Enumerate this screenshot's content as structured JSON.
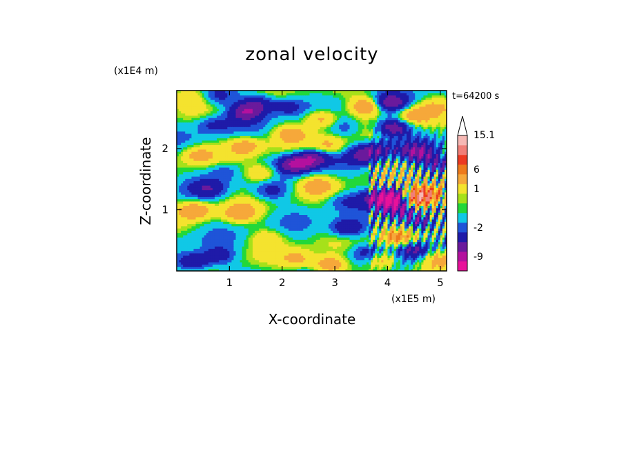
{
  "chart_data": {
    "type": "heatmap",
    "title": "zonal velocity",
    "xlabel": "X-coordinate",
    "ylabel": "Z-coordinate",
    "x_unit": "(x1E5 m)",
    "y_unit": "(x1E4 m)",
    "time_label": "t=64200 s",
    "xlim": [
      0,
      5.12
    ],
    "ylim": [
      0,
      2.95
    ],
    "x_ticks": [
      {
        "value": 1,
        "label": "1"
      },
      {
        "value": 2,
        "label": "2"
      },
      {
        "value": 3,
        "label": "3"
      },
      {
        "value": 4,
        "label": "4"
      },
      {
        "value": 5,
        "label": "5"
      }
    ],
    "y_ticks": [
      {
        "value": 1,
        "label": "1"
      },
      {
        "value": 2,
        "label": "2"
      }
    ],
    "grid": false,
    "colorbar": {
      "max_label": "15.1",
      "levels": [
        {
          "color": "#e8129a",
          "label": ""
        },
        {
          "color": "#b4119e",
          "label": "-9"
        },
        {
          "color": "#6a1a9c",
          "label": ""
        },
        {
          "color": "#1f1aa8",
          "label": ""
        },
        {
          "color": "#1f54d8",
          "label": "-2"
        },
        {
          "color": "#10c8e6",
          "label": ""
        },
        {
          "color": "#22d83a",
          "label": ""
        },
        {
          "color": "#a6e11a",
          "label": ""
        },
        {
          "color": "#f4e32e",
          "label": "1"
        },
        {
          "color": "#f6a83a",
          "label": ""
        },
        {
          "color": "#ee7a1c",
          "label": "6"
        },
        {
          "color": "#ec3a22",
          "label": ""
        },
        {
          "color": "#f07f78",
          "label": ""
        },
        {
          "color": "#f6b8b4",
          "label": ""
        }
      ]
    },
    "features": [
      {
        "x": 0.7,
        "z": 2.4,
        "v": -2.5
      },
      {
        "x": 1.3,
        "z": 2.6,
        "v": -5
      },
      {
        "x": 1.55,
        "z": 2.75,
        "v": -4
      },
      {
        "x": 2.1,
        "z": 2.7,
        "v": -3
      },
      {
        "x": 2.75,
        "z": 2.5,
        "v": 4
      },
      {
        "x": 3.6,
        "z": 2.7,
        "v": 5
      },
      {
        "x": 4.1,
        "z": 2.35,
        "v": -6
      },
      {
        "x": 4.5,
        "z": 2.55,
        "v": 4
      },
      {
        "x": 4.9,
        "z": 2.7,
        "v": 2
      },
      {
        "x": 0.4,
        "z": 1.9,
        "v": 3
      },
      {
        "x": 1.3,
        "z": 2.05,
        "v": 3.5
      },
      {
        "x": 2.15,
        "z": 2.25,
        "v": 3
      },
      {
        "x": 2.25,
        "z": 1.75,
        "v": -6
      },
      {
        "x": 2.6,
        "z": 1.85,
        "v": -5
      },
      {
        "x": 2.9,
        "z": 2.05,
        "v": 3
      },
      {
        "x": 3.55,
        "z": 1.9,
        "v": -4
      },
      {
        "x": 3.85,
        "z": 2.0,
        "v": -3
      },
      {
        "x": 4.55,
        "z": 1.95,
        "v": -5
      },
      {
        "x": 4.95,
        "z": 1.75,
        "v": -4
      },
      {
        "x": 0.9,
        "z": 1.65,
        "v": -2
      },
      {
        "x": 1.8,
        "z": 1.3,
        "v": -2.5
      },
      {
        "x": 2.65,
        "z": 1.4,
        "v": 3
      },
      {
        "x": 0.35,
        "z": 1.0,
        "v": 4
      },
      {
        "x": 1.2,
        "z": 0.95,
        "v": 3.5
      },
      {
        "x": 3.15,
        "z": 1.15,
        "v": -2
      },
      {
        "x": 3.25,
        "z": 0.7,
        "v": -4.5
      },
      {
        "x": 3.75,
        "z": 1.2,
        "v": -3
      },
      {
        "x": 4.1,
        "z": 1.2,
        "v": -11
      },
      {
        "x": 4.25,
        "z": 1.0,
        "v": -5
      },
      {
        "x": 4.55,
        "z": 1.2,
        "v": 11
      },
      {
        "x": 4.85,
        "z": 1.3,
        "v": 5
      },
      {
        "x": 4.6,
        "z": 0.8,
        "v": -5
      },
      {
        "x": 4.2,
        "z": 0.55,
        "v": 5
      },
      {
        "x": 0.3,
        "z": 0.15,
        "v": -5
      },
      {
        "x": 0.8,
        "z": 0.25,
        "v": -3
      },
      {
        "x": 1.7,
        "z": 0.55,
        "v": 2
      },
      {
        "x": 2.3,
        "z": 0.2,
        "v": 3
      },
      {
        "x": 2.9,
        "z": 0.1,
        "v": 5
      },
      {
        "x": 3.6,
        "z": 0.3,
        "v": -3
      },
      {
        "x": 3.9,
        "z": 0.2,
        "v": 4
      },
      {
        "x": 4.5,
        "z": 0.35,
        "v": -4
      },
      {
        "x": 4.95,
        "z": 0.2,
        "v": 3
      },
      {
        "x": 0.2,
        "z": 2.85,
        "v": 2
      },
      {
        "x": 0.8,
        "z": 2.85,
        "v": -2.5
      },
      {
        "x": 3.2,
        "z": 2.35,
        "v": -2
      },
      {
        "x": 1.6,
        "z": 1.6,
        "v": 3.5
      },
      {
        "x": 0.6,
        "z": 1.35,
        "v": -3
      },
      {
        "x": 4.05,
        "z": 2.75,
        "v": -5
      }
    ]
  }
}
